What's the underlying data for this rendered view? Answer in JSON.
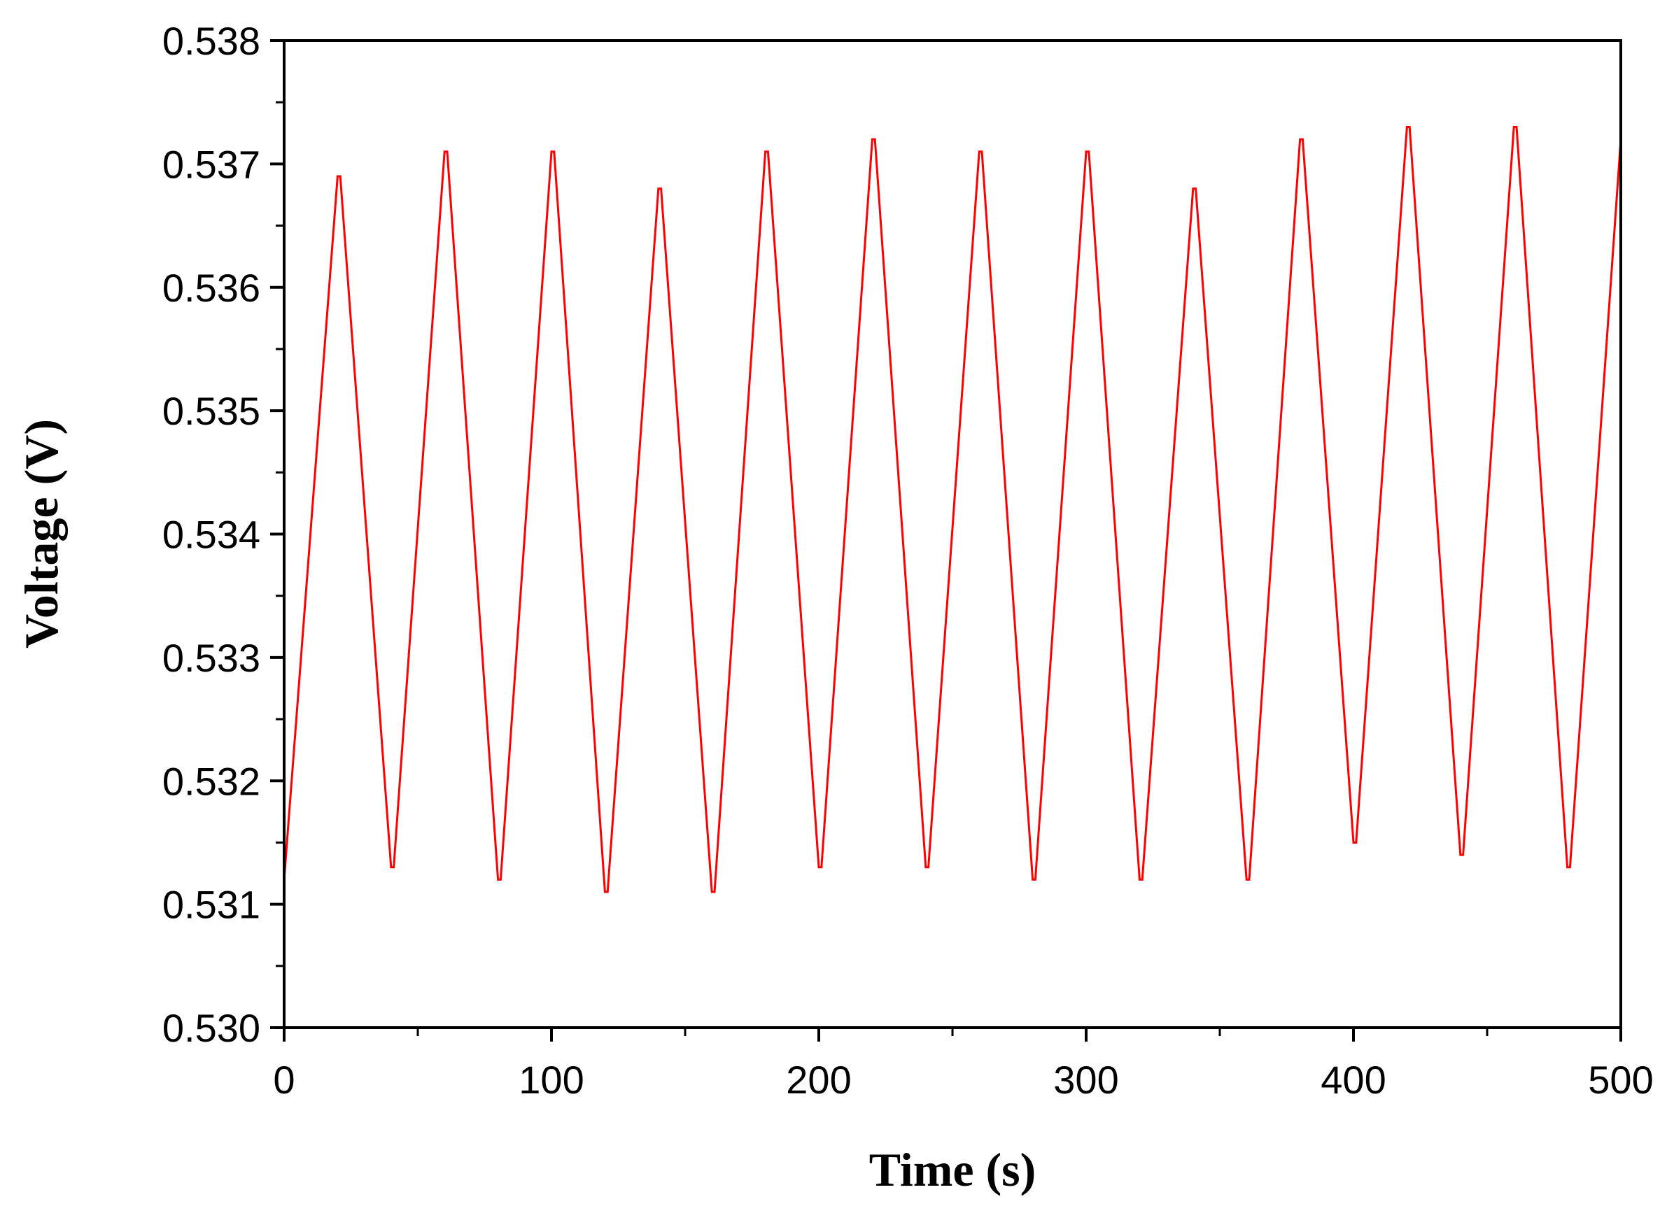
{
  "chart_data": {
    "type": "line",
    "xlabel": "Time (s)",
    "ylabel": "Voltage (V)",
    "xlim": [
      0,
      500
    ],
    "ylim": [
      0.53,
      0.538
    ],
    "x_ticks": [
      0,
      100,
      200,
      300,
      400,
      500
    ],
    "x_tick_labels": [
      "0",
      "100",
      "200",
      "300",
      "400",
      "500"
    ],
    "y_ticks": [
      0.53,
      0.531,
      0.532,
      0.533,
      0.534,
      0.535,
      0.536,
      0.537,
      0.538
    ],
    "y_tick_labels": [
      "0.530",
      "0.531",
      "0.532",
      "0.533",
      "0.534",
      "0.535",
      "0.536",
      "0.537",
      "0.538"
    ],
    "grid": false,
    "line_color": "#ff0000",
    "series": [
      {
        "x": [
          0,
          20,
          21,
          40,
          41,
          60,
          61,
          80,
          81,
          100,
          101,
          120,
          121,
          140,
          141,
          160,
          161,
          180,
          181,
          200,
          201,
          220,
          221,
          240,
          241,
          260,
          261,
          280,
          281,
          300,
          301,
          320,
          321,
          340,
          341,
          360,
          361,
          380,
          381,
          400,
          401,
          420,
          421,
          440,
          441,
          460,
          461,
          480,
          481,
          500
        ],
        "y": [
          0.5312,
          0.5369,
          0.5369,
          0.5313,
          0.5313,
          0.5371,
          0.5371,
          0.5312,
          0.5312,
          0.5371,
          0.5371,
          0.5311,
          0.5311,
          0.5368,
          0.5368,
          0.5311,
          0.5311,
          0.5371,
          0.5371,
          0.5313,
          0.5313,
          0.5372,
          0.5372,
          0.5313,
          0.5313,
          0.5371,
          0.5371,
          0.5312,
          0.5312,
          0.5371,
          0.5371,
          0.5312,
          0.5312,
          0.5368,
          0.5368,
          0.5312,
          0.5312,
          0.5372,
          0.5372,
          0.5315,
          0.5315,
          0.5373,
          0.5373,
          0.5314,
          0.5314,
          0.5373,
          0.5373,
          0.5313,
          0.5313,
          0.5372
        ]
      }
    ]
  }
}
